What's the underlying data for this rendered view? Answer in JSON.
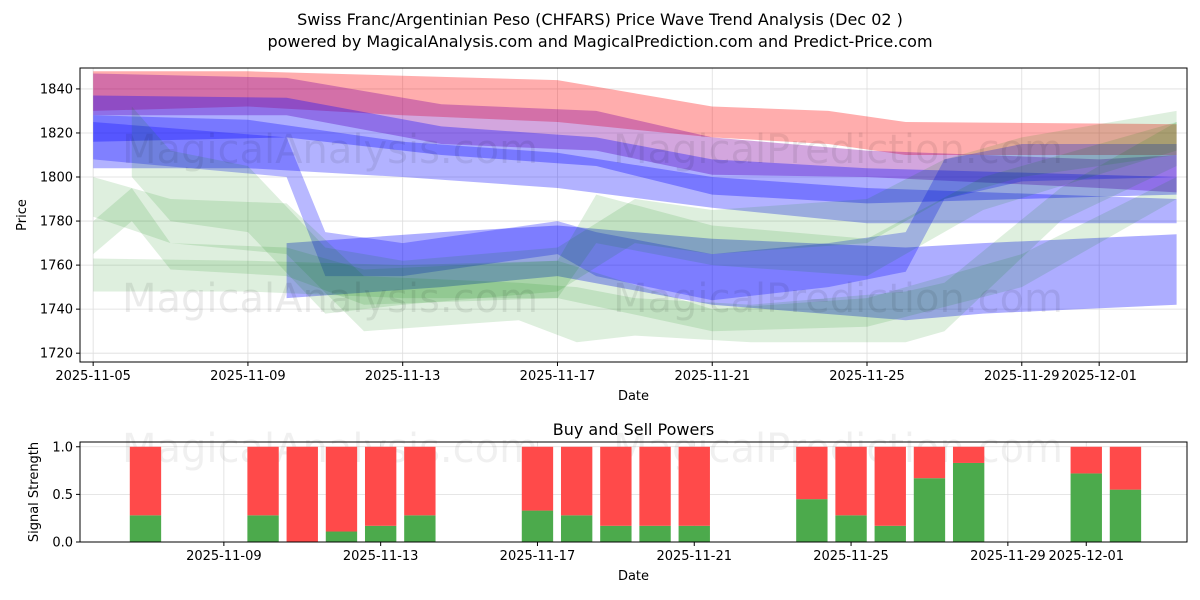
{
  "title_line1": "Swiss Franc/Argentinian Peso (CHFARS) Price Wave Trend Analysis (Dec 02 )",
  "title_line2": "powered by MagicalAnalysis.com and MagicalPrediction.com and Predict-Price.com",
  "watermarks": [
    "MagicalAnalysis.com",
    "MagicalPrediction.com"
  ],
  "chart_data": [
    {
      "type": "area",
      "title": "",
      "xlabel": "Date",
      "ylabel": "Price",
      "xlim": [
        "2025-11-04.66",
        "2025-12-03.27"
      ],
      "ylim": [
        1716,
        1849.5
      ],
      "grid": true,
      "xticks": [
        "2025-11-05",
        "2025-11-09",
        "2025-11-13",
        "2025-11-17",
        "2025-11-21",
        "2025-11-25",
        "2025-11-29",
        "2025-12-01"
      ],
      "yticks": [
        1720,
        1740,
        1760,
        1780,
        1800,
        1820,
        1840
      ],
      "bands": [
        {
          "name": "red-band",
          "color": "#ff0000",
          "opacity": 0.32,
          "x": [
            "2025-11-05",
            "2025-11-09",
            "2025-11-13",
            "2025-11-17",
            "2025-11-21",
            "2025-11-24",
            "2025-11-26",
            "2025-12-03"
          ],
          "upper": [
            1848,
            1848,
            1846,
            1844,
            1832,
            1830,
            1825,
            1824
          ],
          "lower": [
            1830,
            1832,
            1828,
            1825,
            1818,
            1815,
            1810,
            1810
          ]
        },
        {
          "name": "purple-band",
          "color": "#8000a0",
          "opacity": 0.35,
          "x": [
            "2025-11-05",
            "2025-11-10",
            "2025-11-14",
            "2025-11-18",
            "2025-11-21",
            "2025-11-25",
            "2025-12-01",
            "2025-12-03"
          ],
          "upper": [
            1847,
            1845,
            1833,
            1830,
            1818,
            1812,
            1808,
            1810
          ],
          "lower": [
            1828,
            1828,
            1815,
            1812,
            1801,
            1800,
            1795,
            1793
          ]
        },
        {
          "name": "blue-band-upper",
          "color": "#0000ff",
          "opacity": 0.32,
          "x": [
            "2025-11-05",
            "2025-11-10",
            "2025-11-14",
            "2025-11-18",
            "2025-11-21",
            "2025-11-25",
            "2025-12-03"
          ],
          "upper": [
            1837,
            1836,
            1823,
            1818,
            1808,
            1804,
            1800
          ],
          "lower": [
            1816,
            1818,
            1810,
            1805,
            1792,
            1788,
            1792
          ]
        },
        {
          "name": "blue-band-mid",
          "color": "#0000ff",
          "opacity": 0.3,
          "x": [
            "2025-11-05",
            "2025-11-09",
            "2025-11-13",
            "2025-11-17",
            "2025-11-21",
            "2025-11-25",
            "2025-12-03"
          ],
          "upper": [
            1828,
            1826,
            1816,
            1811,
            1800,
            1795,
            1790
          ],
          "lower": [
            1804,
            1804,
            1800,
            1795,
            1786,
            1779,
            1779
          ]
        },
        {
          "name": "blue-band-wave",
          "color": "#0000ff",
          "opacity": 0.28,
          "x": [
            "2025-11-05",
            "2025-11-10",
            "2025-11-11",
            "2025-11-13",
            "2025-11-17",
            "2025-11-18",
            "2025-11-21",
            "2025-11-24",
            "2025-11-26",
            "2025-11-27",
            "2025-11-29",
            "2025-12-03"
          ],
          "upper": [
            1825,
            1818,
            1775,
            1770,
            1780,
            1775,
            1765,
            1770,
            1775,
            1808,
            1815,
            1815
          ],
          "lower": [
            1808,
            1800,
            1755,
            1755,
            1765,
            1755,
            1744,
            1750,
            1757,
            1790,
            1798,
            1800
          ]
        },
        {
          "name": "blue-band-lower",
          "color": "#0000ff",
          "opacity": 0.32,
          "x": [
            "2025-11-10",
            "2025-11-14",
            "2025-11-17",
            "2025-11-21",
            "2025-11-26",
            "2025-11-28",
            "2025-12-03"
          ],
          "upper": [
            1770,
            1775,
            1778,
            1772,
            1768,
            1770,
            1774
          ],
          "lower": [
            1745,
            1750,
            1755,
            1742,
            1735,
            1738,
            1742
          ]
        },
        {
          "name": "green-band-1",
          "color": "#008000",
          "opacity": 0.13,
          "x": [
            "2025-11-06",
            "2025-11-07",
            "2025-11-09",
            "2025-11-11",
            "2025-11-13",
            "2025-11-17",
            "2025-11-19",
            "2025-11-21",
            "2025-11-25",
            "2025-11-27",
            "2025-11-29",
            "2025-12-03"
          ],
          "upper": [
            1832,
            1812,
            1805,
            1768,
            1762,
            1768,
            1790,
            1785,
            1790,
            1808,
            1818,
            1830
          ],
          "lower": [
            1800,
            1780,
            1775,
            1738,
            1742,
            1748,
            1770,
            1765,
            1770,
            1790,
            1800,
            1810
          ]
        },
        {
          "name": "green-band-2",
          "color": "#008000",
          "opacity": 0.13,
          "x": [
            "2025-11-05",
            "2025-11-07",
            "2025-11-10",
            "2025-11-12",
            "2025-11-16",
            "2025-11-17.5",
            "2025-11-19",
            "2025-11-22",
            "2025-11-26",
            "2025-11-27",
            "2025-11-30",
            "2025-12-03"
          ],
          "upper": [
            1800,
            1790,
            1788,
            1755,
            1752,
            1750,
            1745,
            1742,
            1748,
            1752,
            1795,
            1825
          ],
          "lower": [
            1782,
            1770,
            1765,
            1730,
            1735,
            1725,
            1728,
            1725,
            1725,
            1730,
            1780,
            1805
          ]
        },
        {
          "name": "green-band-3",
          "color": "#008000",
          "opacity": 0.13,
          "x": [
            "2025-11-05",
            "2025-11-06",
            "2025-11-07",
            "2025-11-10",
            "2025-11-12",
            "2025-11-17",
            "2025-11-18",
            "2025-11-21",
            "2025-11-25",
            "2025-11-28",
            "2025-12-03"
          ],
          "upper": [
            1780,
            1795,
            1770,
            1768,
            1758,
            1762,
            1792,
            1778,
            1772,
            1800,
            1825
          ],
          "lower": [
            1765,
            1780,
            1758,
            1755,
            1742,
            1745,
            1770,
            1760,
            1755,
            1785,
            1812
          ]
        },
        {
          "name": "green-band-4",
          "color": "#008000",
          "opacity": 0.13,
          "x": [
            "2025-11-05",
            "2025-11-09",
            "2025-11-13",
            "2025-11-17",
            "2025-11-21",
            "2025-11-25",
            "2025-11-29",
            "2025-12-03"
          ],
          "upper": [
            1763,
            1762,
            1760,
            1762,
            1740,
            1745,
            1765,
            1800
          ],
          "lower": [
            1748,
            1748,
            1745,
            1745,
            1730,
            1732,
            1750,
            1790
          ]
        }
      ]
    },
    {
      "type": "bar",
      "title": "Buy and Sell Powers",
      "xlabel": "Date",
      "ylabel": "Signal Strength",
      "xlim": [
        "2025-11-05.33",
        "2025-12-03.57"
      ],
      "ylim": [
        0,
        1.05
      ],
      "grid": true,
      "xticks": [
        "2025-11-09",
        "2025-11-13",
        "2025-11-17",
        "2025-11-21",
        "2025-11-25",
        "2025-11-29",
        "2025-12-01"
      ],
      "yticks": [
        "0.0",
        "0.5",
        "1.0"
      ],
      "buy_color": "#4caa4c",
      "sell_color": "#ff4a4a",
      "categories": [
        "2025-11-07",
        "2025-11-10",
        "2025-11-11",
        "2025-11-12",
        "2025-11-13",
        "2025-11-14",
        "2025-11-17",
        "2025-11-18",
        "2025-11-19",
        "2025-11-20",
        "2025-11-21",
        "2025-11-24",
        "2025-11-25",
        "2025-11-26",
        "2025-11-27",
        "2025-11-28",
        "2025-12-01",
        "2025-12-02"
      ],
      "series": [
        {
          "name": "Buy",
          "values": [
            0.28,
            0.28,
            0.0,
            0.11,
            0.17,
            0.28,
            0.33,
            0.28,
            0.17,
            0.17,
            0.17,
            0.45,
            0.28,
            0.17,
            0.67,
            0.83,
            0.72,
            0.55
          ]
        },
        {
          "name": "Sell",
          "values": [
            0.72,
            0.72,
            1.0,
            0.89,
            0.83,
            0.72,
            0.67,
            0.72,
            0.83,
            0.83,
            0.83,
            0.55,
            0.72,
            0.83,
            0.33,
            0.17,
            0.28,
            0.45
          ]
        }
      ]
    }
  ]
}
